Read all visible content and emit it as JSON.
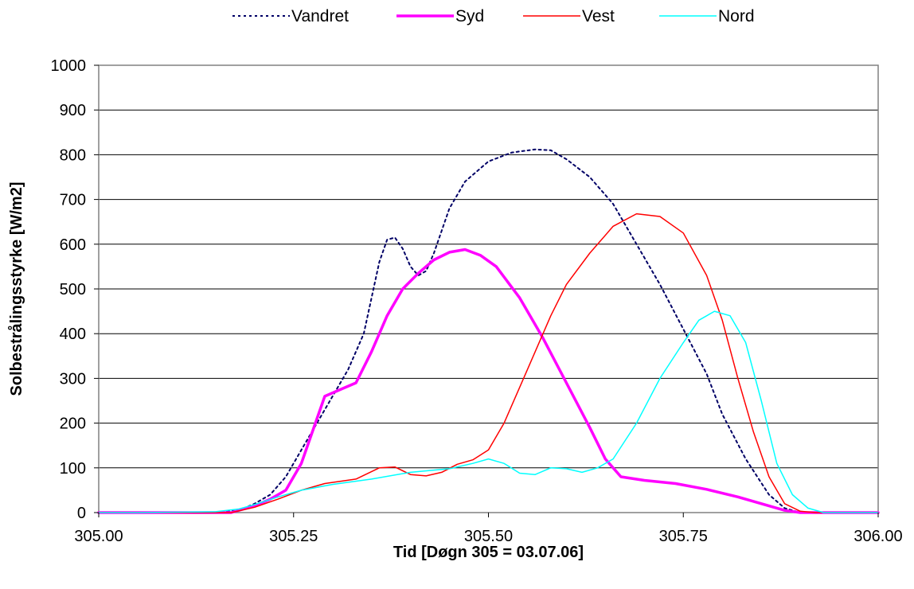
{
  "chart_data": {
    "type": "line",
    "title": "",
    "xlabel": "Tid [Døgn 305 = 03.07.06]",
    "ylabel": "Solbestrålingsstyrke [W/m2]",
    "xlim": [
      305.0,
      306.0
    ],
    "ylim": [
      0,
      1000
    ],
    "x_ticks": [
      305.0,
      305.25,
      305.5,
      305.75,
      306.0
    ],
    "x_tick_labels": [
      "305.00",
      "305.25",
      "305.50",
      "305.75",
      "306.00"
    ],
    "y_ticks": [
      0,
      100,
      200,
      300,
      400,
      500,
      600,
      700,
      800,
      900,
      1000
    ],
    "y_tick_labels": [
      "0",
      "100",
      "200",
      "300",
      "400",
      "500",
      "600",
      "700",
      "800",
      "900",
      "1000"
    ],
    "grid": "horizontal",
    "legend_position": "top",
    "series": [
      {
        "name": "Vandret",
        "color": "#000066",
        "style": "dotted",
        "points": [
          [
            305.0,
            0
          ],
          [
            305.15,
            0
          ],
          [
            305.18,
            5
          ],
          [
            305.2,
            20
          ],
          [
            305.22,
            40
          ],
          [
            305.24,
            80
          ],
          [
            305.26,
            140
          ],
          [
            305.28,
            200
          ],
          [
            305.3,
            260
          ],
          [
            305.32,
            320
          ],
          [
            305.34,
            400
          ],
          [
            305.36,
            560
          ],
          [
            305.37,
            610
          ],
          [
            305.38,
            615
          ],
          [
            305.39,
            590
          ],
          [
            305.4,
            550
          ],
          [
            305.41,
            530
          ],
          [
            305.42,
            540
          ],
          [
            305.43,
            580
          ],
          [
            305.45,
            680
          ],
          [
            305.47,
            740
          ],
          [
            305.5,
            785
          ],
          [
            305.53,
            805
          ],
          [
            305.56,
            812
          ],
          [
            305.58,
            810
          ],
          [
            305.6,
            790
          ],
          [
            305.63,
            750
          ],
          [
            305.66,
            690
          ],
          [
            305.69,
            600
          ],
          [
            305.72,
            510
          ],
          [
            305.75,
            410
          ],
          [
            305.78,
            310
          ],
          [
            305.8,
            220
          ],
          [
            305.83,
            120
          ],
          [
            305.86,
            40
          ],
          [
            305.88,
            10
          ],
          [
            305.9,
            0
          ],
          [
            306.0,
            0
          ]
        ]
      },
      {
        "name": "Syd",
        "color": "#ff00ff",
        "style": "bold",
        "points": [
          [
            305.0,
            0
          ],
          [
            305.17,
            0
          ],
          [
            305.2,
            15
          ],
          [
            305.22,
            30
          ],
          [
            305.24,
            50
          ],
          [
            305.26,
            110
          ],
          [
            305.28,
            210
          ],
          [
            305.29,
            260
          ],
          [
            305.31,
            275
          ],
          [
            305.33,
            290
          ],
          [
            305.35,
            360
          ],
          [
            305.37,
            440
          ],
          [
            305.39,
            500
          ],
          [
            305.41,
            535
          ],
          [
            305.43,
            565
          ],
          [
            305.45,
            582
          ],
          [
            305.47,
            588
          ],
          [
            305.49,
            575
          ],
          [
            305.51,
            550
          ],
          [
            305.54,
            480
          ],
          [
            305.57,
            390
          ],
          [
            305.6,
            290
          ],
          [
            305.63,
            190
          ],
          [
            305.65,
            120
          ],
          [
            305.67,
            80
          ],
          [
            305.7,
            72
          ],
          [
            305.74,
            65
          ],
          [
            305.78,
            52
          ],
          [
            305.82,
            35
          ],
          [
            305.86,
            15
          ],
          [
            305.88,
            5
          ],
          [
            305.9,
            0
          ],
          [
            306.0,
            0
          ]
        ]
      },
      {
        "name": "Vest",
        "color": "#ff0000",
        "style": "solid",
        "points": [
          [
            305.0,
            0
          ],
          [
            305.17,
            0
          ],
          [
            305.2,
            12
          ],
          [
            305.23,
            30
          ],
          [
            305.26,
            50
          ],
          [
            305.29,
            65
          ],
          [
            305.33,
            75
          ],
          [
            305.36,
            100
          ],
          [
            305.38,
            102
          ],
          [
            305.4,
            85
          ],
          [
            305.42,
            82
          ],
          [
            305.44,
            90
          ],
          [
            305.46,
            108
          ],
          [
            305.48,
            118
          ],
          [
            305.5,
            140
          ],
          [
            305.52,
            200
          ],
          [
            305.55,
            320
          ],
          [
            305.58,
            440
          ],
          [
            305.6,
            510
          ],
          [
            305.63,
            580
          ],
          [
            305.66,
            640
          ],
          [
            305.69,
            668
          ],
          [
            305.72,
            662
          ],
          [
            305.75,
            625
          ],
          [
            305.78,
            530
          ],
          [
            305.8,
            430
          ],
          [
            305.82,
            300
          ],
          [
            305.84,
            180
          ],
          [
            305.86,
            80
          ],
          [
            305.88,
            20
          ],
          [
            305.9,
            3
          ],
          [
            305.92,
            0
          ],
          [
            306.0,
            0
          ]
        ]
      },
      {
        "name": "Nord",
        "color": "#00ffff",
        "style": "solid",
        "points": [
          [
            305.0,
            0
          ],
          [
            305.05,
            0
          ],
          [
            305.15,
            2
          ],
          [
            305.18,
            8
          ],
          [
            305.2,
            18
          ],
          [
            305.23,
            35
          ],
          [
            305.26,
            50
          ],
          [
            305.3,
            63
          ],
          [
            305.35,
            75
          ],
          [
            305.4,
            90
          ],
          [
            305.45,
            98
          ],
          [
            305.48,
            110
          ],
          [
            305.5,
            120
          ],
          [
            305.52,
            110
          ],
          [
            305.54,
            88
          ],
          [
            305.56,
            85
          ],
          [
            305.58,
            100
          ],
          [
            305.6,
            98
          ],
          [
            305.62,
            90
          ],
          [
            305.64,
            100
          ],
          [
            305.66,
            120
          ],
          [
            305.69,
            200
          ],
          [
            305.72,
            300
          ],
          [
            305.75,
            380
          ],
          [
            305.77,
            430
          ],
          [
            305.79,
            450
          ],
          [
            305.81,
            440
          ],
          [
            305.83,
            380
          ],
          [
            305.85,
            250
          ],
          [
            305.87,
            110
          ],
          [
            305.89,
            40
          ],
          [
            305.91,
            10
          ],
          [
            305.93,
            0
          ],
          [
            306.0,
            0
          ]
        ]
      }
    ]
  }
}
